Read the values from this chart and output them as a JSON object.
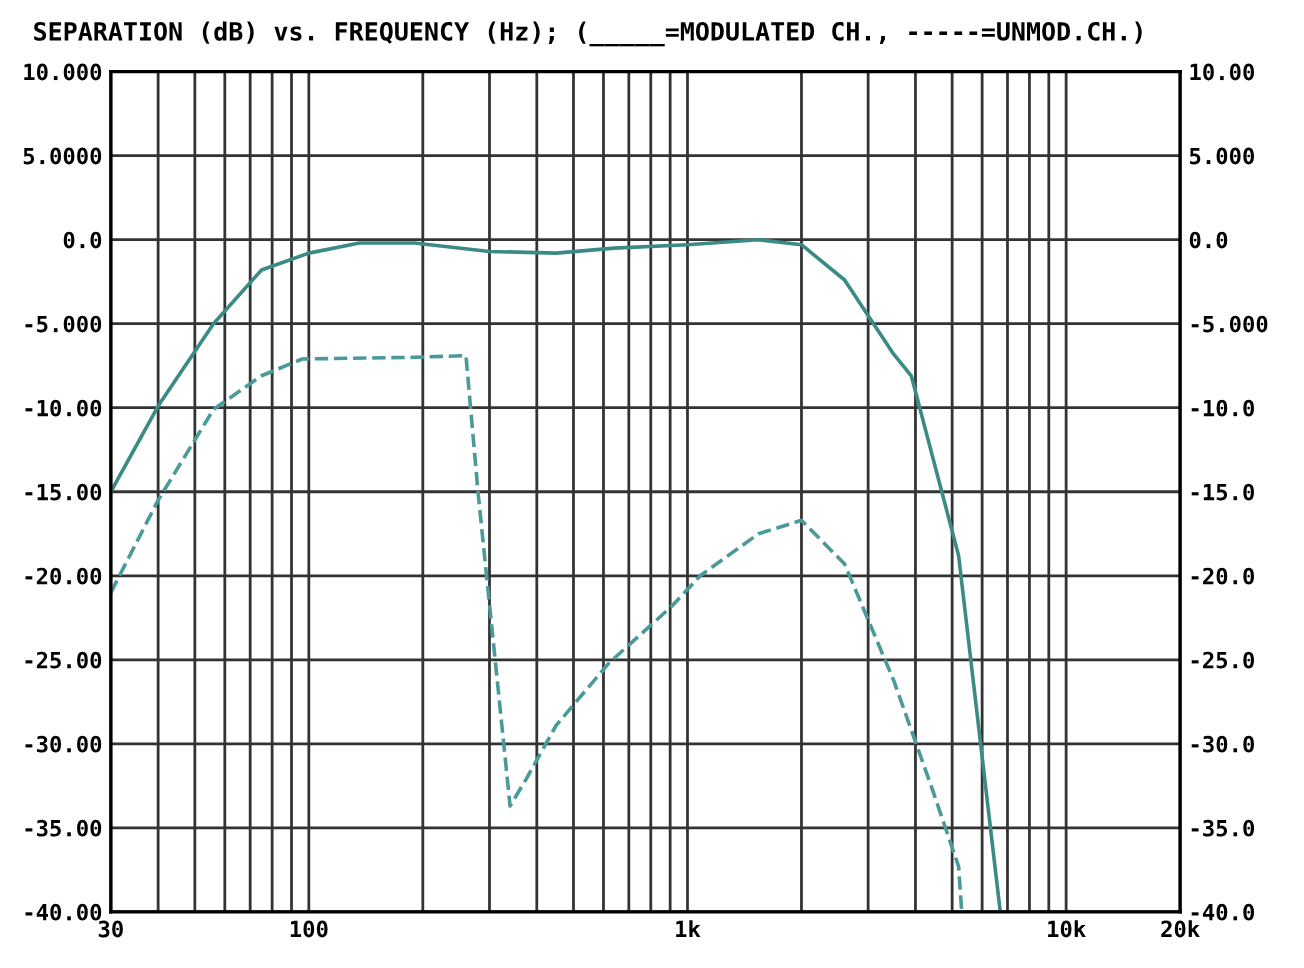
{
  "chart_data": {
    "type": "line",
    "title": "SEPARATION (dB) vs. FREQUENCY (Hz); (_____=MODULATED CH., -----=UNMOD.CH.)",
    "log": "x",
    "grid": true,
    "legend": false,
    "xlim": [
      30,
      20000
    ],
    "xticks": [
      30,
      {
        "value": 40,
        "label": null
      },
      {
        "value": 50,
        "label": null
      },
      {
        "value": 60,
        "label": null
      },
      {
        "value": 70,
        "label": null
      },
      {
        "value": 80,
        "label": null
      },
      {
        "value": 90,
        "label": null
      },
      100,
      {
        "value": 200,
        "label": null
      },
      {
        "value": 300,
        "label": null
      },
      {
        "value": 400,
        "label": null
      },
      {
        "value": 500,
        "label": null
      },
      {
        "value": 600,
        "label": null
      },
      {
        "value": 700,
        "label": null
      },
      {
        "value": 800,
        "label": null
      },
      {
        "value": 900,
        "label": null
      },
      {
        "value": 1000,
        "label": "1k"
      },
      {
        "value": 2000,
        "label": null
      },
      {
        "value": 3000,
        "label": null
      },
      {
        "value": 4000,
        "label": null
      },
      {
        "value": 5000,
        "label": null
      },
      {
        "value": 6000,
        "label": null
      },
      {
        "value": 7000,
        "label": null
      },
      {
        "value": 8000,
        "label": null
      },
      {
        "value": 9000,
        "label": null
      },
      {
        "value": 10000,
        "label": "10k"
      },
      {
        "value": 20000,
        "label": "20k"
      }
    ],
    "ylim": [
      -40,
      10
    ],
    "yticks": [
      {
        "value": 10,
        "label": "10.000"
      },
      {
        "value": 5,
        "label": "5.0000"
      },
      {
        "value": 0,
        "label": "0.0"
      },
      {
        "value": -5,
        "label": "-5.000"
      },
      {
        "value": -10,
        "label": "-10.00"
      },
      {
        "value": -15,
        "label": "-15.00"
      },
      {
        "value": -20,
        "label": "-20.00"
      },
      {
        "value": -25,
        "label": "-25.00"
      },
      {
        "value": -30,
        "label": "-30.00"
      },
      {
        "value": -35,
        "label": "-35.00"
      },
      {
        "value": -40,
        "label": "-40.00"
      }
    ],
    "y2lim": [
      -40,
      10
    ],
    "y2ticks": [
      {
        "value": 10,
        "label": "10.00"
      },
      {
        "value": 5,
        "label": "5.000"
      },
      {
        "value": 0,
        "label": "0.0"
      },
      {
        "value": -5,
        "label": "-5.000"
      },
      {
        "value": -10,
        "label": "-10.0"
      },
      {
        "value": -15,
        "label": "-15.0"
      },
      {
        "value": -20,
        "label": "-20.0"
      },
      {
        "value": -25,
        "label": "-25.0"
      },
      {
        "value": -30,
        "label": "-30.0"
      },
      {
        "value": -35,
        "label": "-35.0"
      },
      {
        "value": -40,
        "label": "-40.0"
      }
    ],
    "series": [
      {
        "color": "#3a8a86",
        "line_style": "solid",
        "x": [
          30,
          40,
          56,
          75,
          100,
          136,
          190,
          300,
          450,
          640,
          1000,
          1540,
          2000,
          2600,
          3500,
          3900,
          5200,
          6700
        ],
        "values": [
          -15,
          -9.9,
          -5,
          -1.8,
          -0.8,
          -0.2,
          -0.2,
          -0.7,
          -0.8,
          -0.5,
          -0.3,
          0,
          -0.3,
          -2.4,
          -6.8,
          -8.1,
          -18.8,
          -40
        ]
      },
      {
        "color": "#4a9a9a",
        "line_style": "dashed",
        "x": [
          30,
          40,
          56,
          75,
          96,
          190,
          260,
          280,
          340,
          375,
          450,
          620,
          910,
          1080,
          1540,
          2000,
          2600,
          3500,
          4400,
          5200,
          5300
        ],
        "values": [
          -21,
          -15.5,
          -10.1,
          -8.1,
          -7.1,
          -7,
          -6.9,
          -15.1,
          -33.7,
          -32.1,
          -28.9,
          -25.2,
          -21.8,
          -20,
          -17.5,
          -16.7,
          -19.3,
          -26.2,
          -32.5,
          -37.3,
          -40
        ]
      }
    ]
  }
}
